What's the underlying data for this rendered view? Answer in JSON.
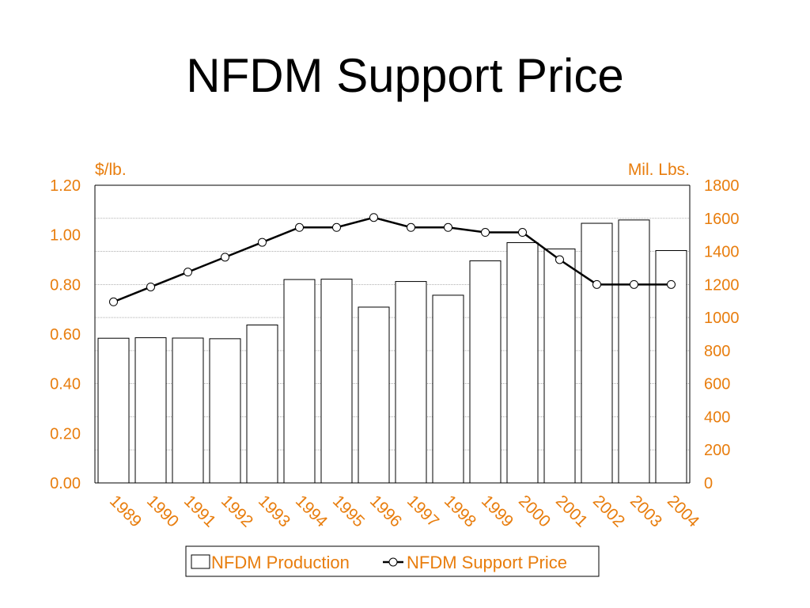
{
  "slide": {
    "title": "NFDM Support Price"
  },
  "colors": {
    "accent": "#e87d0d",
    "bar_fill": "#ffffff",
    "line": "#000000",
    "grid": "#808080"
  },
  "chart_data": {
    "type": "bar",
    "title": "",
    "categories": [
      "1989",
      "1990",
      "1991",
      "1992",
      "1993",
      "1994",
      "1995",
      "1996",
      "1997",
      "1998",
      "1999",
      "2000",
      "2001",
      "2002",
      "2003",
      "2004"
    ],
    "left_axis": {
      "label": "$/lb.",
      "ylim": [
        0,
        1.2
      ],
      "ticks": [
        "0.00",
        "0.20",
        "0.40",
        "0.60",
        "0.80",
        "1.00",
        "1.20"
      ]
    },
    "right_axis": {
      "label": "Mil. Lbs.",
      "ylim": [
        0,
        1800
      ],
      "ticks": [
        "0",
        "200",
        "400",
        "600",
        "800",
        "1000",
        "1200",
        "1400",
        "1600",
        "1800"
      ]
    },
    "series": [
      {
        "name": "NFDM Production",
        "type": "bar",
        "axis": "right",
        "values": [
          875,
          878,
          876,
          872,
          955,
          1230,
          1232,
          1063,
          1218,
          1135,
          1343,
          1453,
          1415,
          1570,
          1590,
          1405
        ]
      },
      {
        "name": "NFDM Support Price",
        "type": "line",
        "axis": "left",
        "marker": "circle",
        "values": [
          0.73,
          0.79,
          0.85,
          0.91,
          0.97,
          1.03,
          1.03,
          1.07,
          1.03,
          1.03,
          1.01,
          1.01,
          0.9,
          0.8,
          0.8,
          0.8
        ]
      }
    ],
    "grid": true,
    "legend": {
      "position": "bottom"
    }
  }
}
